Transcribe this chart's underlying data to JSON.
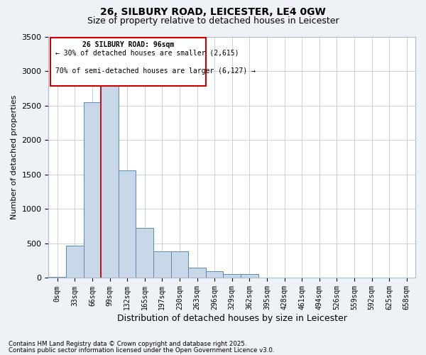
{
  "title_line1": "26, SILBURY ROAD, LEICESTER, LE4 0GW",
  "title_line2": "Size of property relative to detached houses in Leicester",
  "xlabel": "Distribution of detached houses by size in Leicester",
  "ylabel": "Number of detached properties",
  "bar_labels": [
    "0sqm",
    "33sqm",
    "66sqm",
    "99sqm",
    "132sqm",
    "165sqm",
    "197sqm",
    "230sqm",
    "263sqm",
    "296sqm",
    "329sqm",
    "362sqm",
    "395sqm",
    "428sqm",
    "461sqm",
    "494sqm",
    "526sqm",
    "559sqm",
    "592sqm",
    "625sqm",
    "658sqm"
  ],
  "bar_values": [
    20,
    470,
    2550,
    2800,
    1560,
    730,
    390,
    390,
    150,
    100,
    60,
    60,
    10,
    0,
    0,
    0,
    0,
    0,
    0,
    0,
    0
  ],
  "bar_color": "#c8d8e8",
  "bar_edge_color": "#5a8ab0",
  "vline_x_index": 2.5,
  "vline_color": "#cc0000",
  "ylim": [
    0,
    3500
  ],
  "yticks": [
    0,
    500,
    1000,
    1500,
    2000,
    2500,
    3000,
    3500
  ],
  "annotation_title": "26 SILBURY ROAD: 96sqm",
  "annotation_line2": "← 30% of detached houses are smaller (2,615)",
  "annotation_line3": "70% of semi-detached houses are larger (6,127) →",
  "annotation_box_color": "#cc0000",
  "annotation_fill": "#ffffff",
  "footer_line1": "Contains HM Land Registry data © Crown copyright and database right 2025.",
  "footer_line2": "Contains public sector information licensed under the Open Government Licence v3.0.",
  "background_color": "#eef2f7",
  "plot_background": "#ffffff",
  "grid_color": "#c0ccda",
  "title1_fontsize": 10,
  "title2_fontsize": 9,
  "tick_fontsize": 7,
  "ylabel_fontsize": 8,
  "xlabel_fontsize": 9
}
